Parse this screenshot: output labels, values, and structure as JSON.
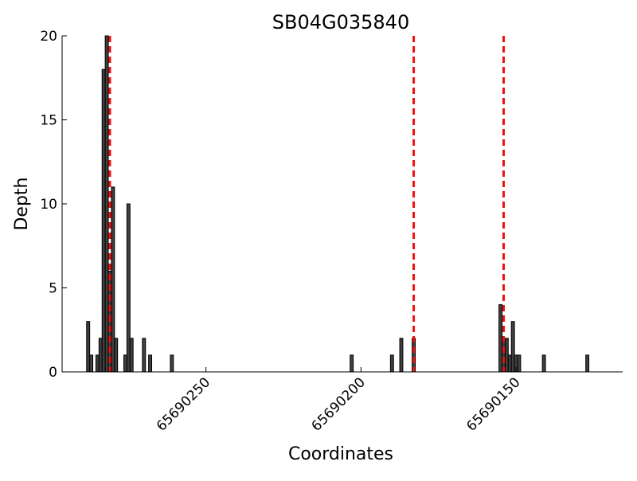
{
  "chart_data": {
    "type": "bar",
    "title": "SB04G035840",
    "x_label": "Coordinates",
    "y_label": "Depth",
    "x": [
      65690288,
      65690287,
      65690285,
      65690284,
      65690283,
      65690282,
      65690281,
      65690280,
      65690279,
      65690276,
      65690275,
      65690274,
      65690270,
      65690268,
      65690261,
      65690203,
      65690190,
      65690187,
      65690183,
      65690155,
      65690154,
      65690153,
      65690152,
      65690151,
      65690150,
      65690149,
      65690141,
      65690127
    ],
    "values": [
      3,
      1,
      1,
      2,
      18,
      20,
      6,
      11,
      2,
      1,
      10,
      2,
      2,
      1,
      1,
      1,
      1,
      2,
      2,
      4,
      2,
      2,
      1,
      3,
      1,
      1,
      1,
      1
    ],
    "color": "#404040",
    "markers": [
      65690281,
      65690183,
      65690154
    ],
    "marker_color": "#ee1111",
    "xlim": [
      65690296.4,
      65690115.6
    ],
    "xticks": [
      65690250,
      65690200,
      65690150
    ],
    "ylim": [
      0,
      20
    ],
    "yticks": [
      0,
      5,
      10,
      15,
      20
    ]
  }
}
